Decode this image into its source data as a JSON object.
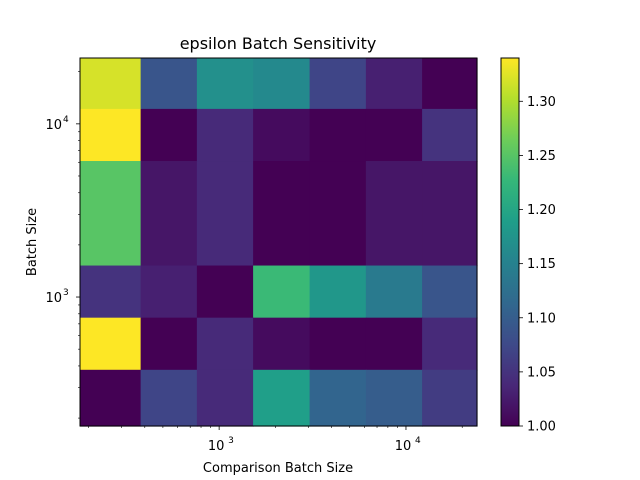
{
  "chart_data": {
    "type": "heatmap",
    "title": "epsilon Batch Sensitivity",
    "xlabel": "Comparison Batch Size",
    "ylabel": "Batch Size",
    "xscale": "log",
    "yscale": "log",
    "x_range": [
      180,
      24000
    ],
    "y_range": [
      180,
      24000
    ],
    "x_edges": [
      180,
      380,
      760,
      1520,
      3050,
      6100,
      12200,
      24000
    ],
    "y_edges": [
      180,
      380,
      760,
      1520,
      3050,
      6100,
      12200,
      24000
    ],
    "x_major_ticks": [
      {
        "value": 1000,
        "base": "10",
        "exp": "3"
      },
      {
        "value": 10000,
        "base": "10",
        "exp": "4"
      }
    ],
    "y_major_ticks": [
      {
        "value": 1000,
        "base": "10",
        "exp": "3"
      },
      {
        "value": 10000,
        "base": "10",
        "exp": "4"
      }
    ],
    "values_top_to_bottom": [
      [
        1.32,
        1.09,
        1.17,
        1.16,
        1.07,
        1.03,
        1.0
      ],
      [
        1.34,
        1.0,
        1.04,
        1.01,
        1.0,
        1.0,
        1.05
      ],
      [
        1.25,
        1.02,
        1.04,
        1.0,
        1.0,
        1.02,
        1.02
      ],
      [
        1.05,
        1.03,
        1.0,
        1.23,
        1.18,
        1.14,
        1.09
      ],
      [
        1.34,
        1.0,
        1.04,
        1.01,
        1.0,
        1.0,
        1.04
      ],
      [
        1.0,
        1.07,
        1.04,
        1.19,
        1.11,
        1.1,
        1.06
      ]
    ],
    "row_spans_y": [
      [
        12200,
        24000
      ],
      [
        6100,
        12200
      ],
      [
        1520,
        6100
      ],
      [
        760,
        1520
      ],
      [
        380,
        760
      ],
      [
        180,
        380
      ]
    ],
    "colorbar": {
      "min": 1.0,
      "max": 1.34,
      "ticks": [
        "1.00",
        "1.05",
        "1.10",
        "1.15",
        "1.20",
        "1.25",
        "1.30"
      ],
      "colormap": "viridis"
    },
    "grid": false,
    "legend": "none"
  }
}
